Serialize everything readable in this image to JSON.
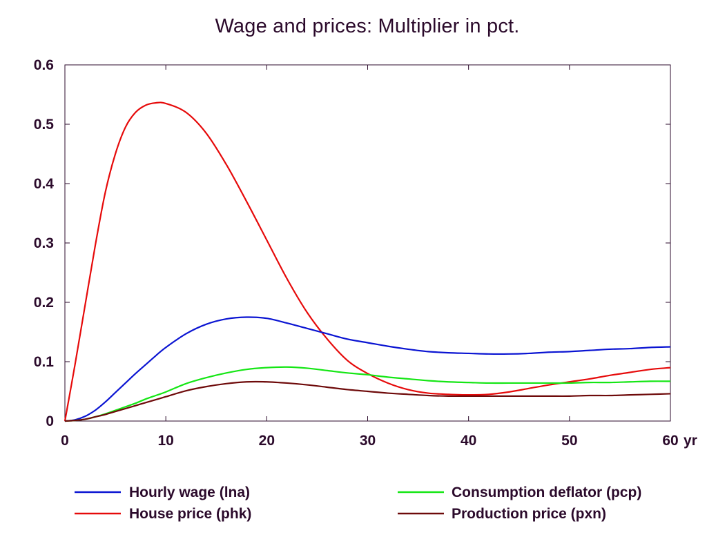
{
  "chart_data": {
    "type": "line",
    "title": "Wage and prices: Multiplier in pct.",
    "xlabel": "",
    "ylabel": "",
    "x_unit_label": "yr",
    "xlim": [
      0,
      60
    ],
    "ylim": [
      0,
      0.6
    ],
    "xticks": [
      0,
      10,
      20,
      30,
      40,
      50,
      60
    ],
    "yticks": [
      0,
      0.1,
      0.2,
      0.3,
      0.4,
      0.5,
      0.6
    ],
    "grid": false,
    "legend_position": "bottom",
    "x": [
      0,
      1,
      2,
      3,
      4,
      5,
      6,
      7,
      8,
      9,
      10,
      12,
      14,
      16,
      18,
      20,
      22,
      24,
      26,
      28,
      30,
      32,
      34,
      36,
      38,
      40,
      42,
      44,
      46,
      48,
      50,
      52,
      54,
      56,
      58,
      60
    ],
    "series": [
      {
        "name": "Hourly wage (lna)",
        "color": "#0a14d2",
        "values": [
          0,
          0.002,
          0.008,
          0.018,
          0.032,
          0.048,
          0.064,
          0.08,
          0.095,
          0.11,
          0.124,
          0.147,
          0.163,
          0.172,
          0.175,
          0.173,
          0.165,
          0.156,
          0.147,
          0.138,
          0.132,
          0.126,
          0.121,
          0.117,
          0.115,
          0.114,
          0.113,
          0.113,
          0.114,
          0.116,
          0.117,
          0.119,
          0.121,
          0.122,
          0.124,
          0.125
        ]
      },
      {
        "name": "House price (phk)",
        "color": "#e60a0a",
        "values": [
          0,
          0.095,
          0.195,
          0.295,
          0.385,
          0.45,
          0.495,
          0.52,
          0.532,
          0.536,
          0.535,
          0.52,
          0.485,
          0.432,
          0.37,
          0.305,
          0.24,
          0.183,
          0.138,
          0.102,
          0.08,
          0.064,
          0.053,
          0.047,
          0.045,
          0.044,
          0.045,
          0.049,
          0.055,
          0.061,
          0.066,
          0.071,
          0.077,
          0.082,
          0.087,
          0.09
        ]
      },
      {
        "name": "Consumption deflator (pcp)",
        "color": "#14e614",
        "values": [
          0,
          0.001,
          0.003,
          0.007,
          0.012,
          0.018,
          0.024,
          0.03,
          0.037,
          0.043,
          0.049,
          0.063,
          0.073,
          0.081,
          0.087,
          0.09,
          0.091,
          0.089,
          0.085,
          0.081,
          0.078,
          0.074,
          0.071,
          0.068,
          0.066,
          0.065,
          0.064,
          0.064,
          0.064,
          0.064,
          0.064,
          0.065,
          0.065,
          0.066,
          0.067,
          0.067
        ]
      },
      {
        "name": "Production price (pxn)",
        "color": "#6e0a0a",
        "values": [
          0,
          0.001,
          0.003,
          0.007,
          0.011,
          0.016,
          0.021,
          0.026,
          0.031,
          0.036,
          0.041,
          0.051,
          0.058,
          0.063,
          0.066,
          0.066,
          0.064,
          0.061,
          0.057,
          0.053,
          0.05,
          0.047,
          0.045,
          0.043,
          0.042,
          0.042,
          0.042,
          0.042,
          0.042,
          0.042,
          0.042,
          0.043,
          0.043,
          0.044,
          0.045,
          0.046
        ]
      }
    ]
  }
}
